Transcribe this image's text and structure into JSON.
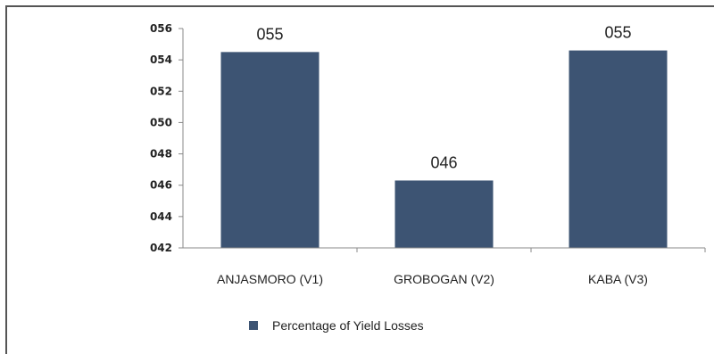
{
  "chart_data": {
    "type": "bar",
    "categories": [
      "ANJASMORO (V1)",
      "GROBOGAN (V2)",
      "KABA (V3)"
    ],
    "series": [
      {
        "name": "Percentage of Yield Losses",
        "values": [
          54.5,
          46.3,
          54.6
        ],
        "labels": [
          "055",
          "046",
          "055"
        ]
      }
    ],
    "yticks": [
      "042",
      "044",
      "046",
      "048",
      "050",
      "052",
      "054",
      "056"
    ],
    "ylim": [
      42,
      56
    ],
    "grid": false,
    "legend_position": "bottom",
    "colors": {
      "bar": "#3d5473",
      "axis": "#888888"
    }
  }
}
